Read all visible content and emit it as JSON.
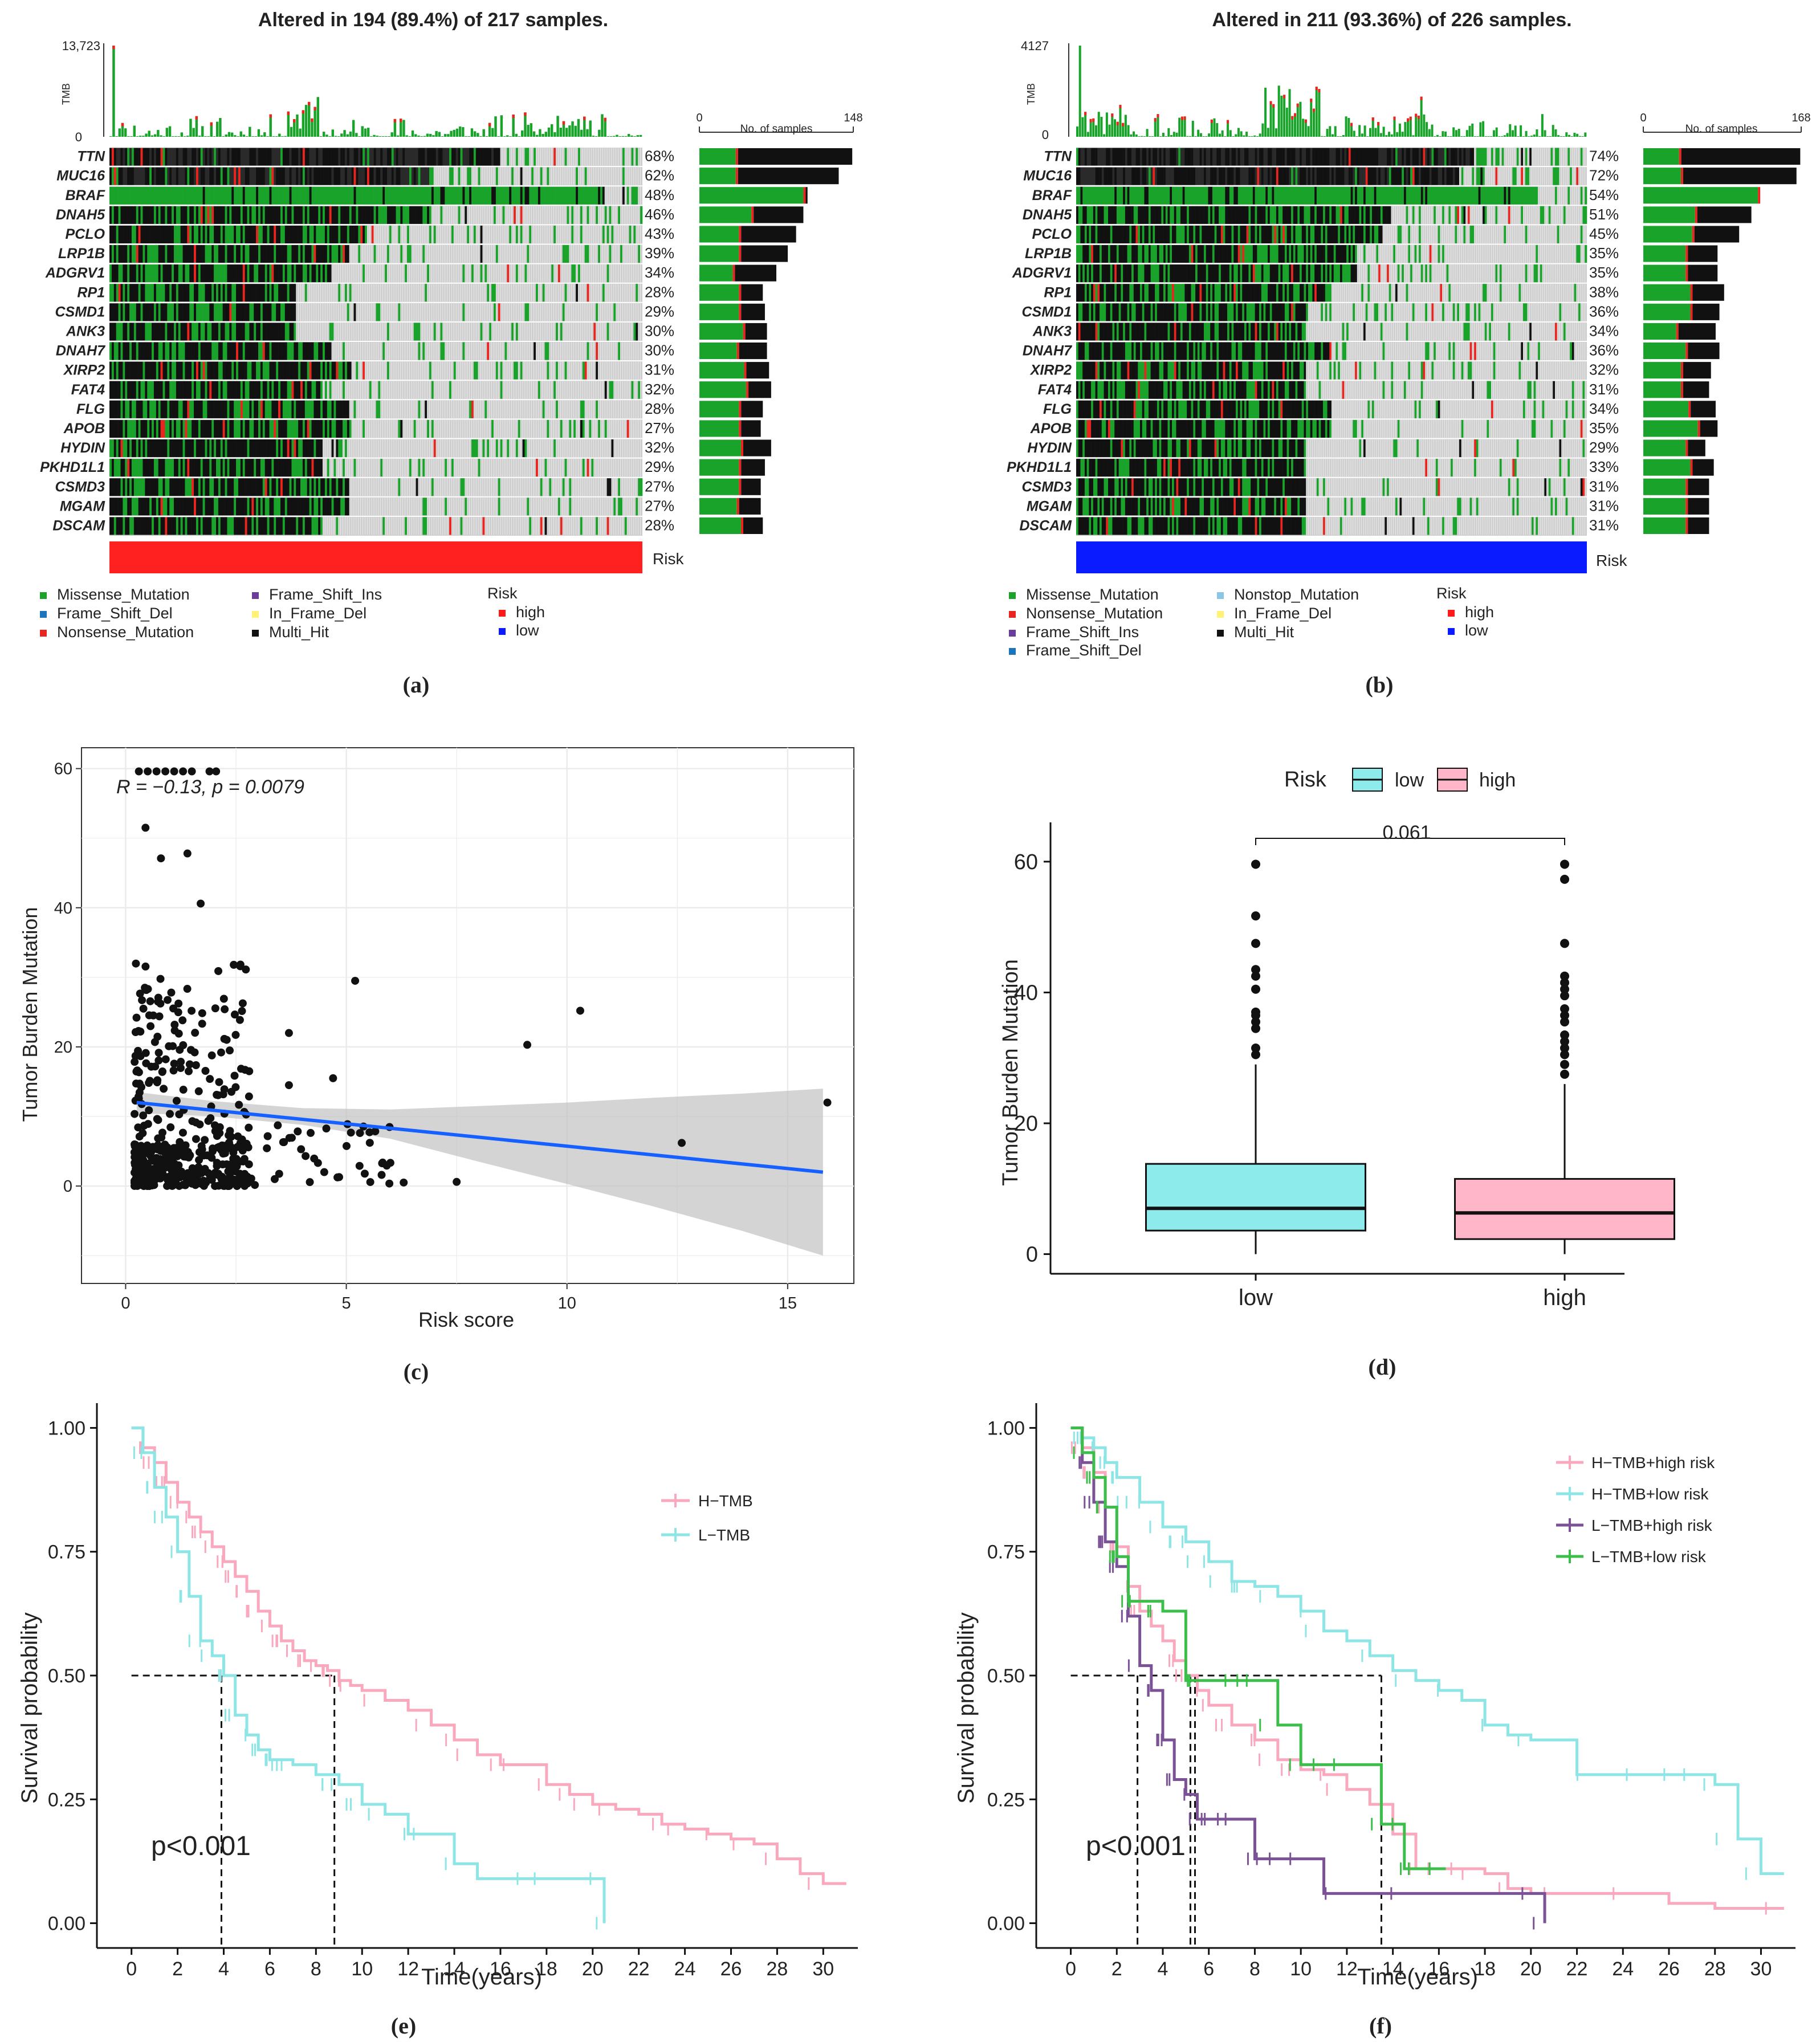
{
  "chart_data": [
    {
      "panel": "(a)",
      "type": "oncoplot",
      "title": "Altered in 194 (89.4%) of 217 samples.",
      "tmb_label": "TMB",
      "tmb_max": "13,723",
      "tmb_zero": "0",
      "bar_axis_label": "No. of samples",
      "bar_axis_max": 148,
      "risk_label": "Risk",
      "risk_group": "high",
      "genes": [
        "TTN",
        "MUC16",
        "BRAF",
        "DNAH5",
        "PCLO",
        "LRP1B",
        "ADGRV1",
        "RP1",
        "CSMD1",
        "ANK3",
        "DNAH7",
        "XIRP2",
        "FAT4",
        "FLG",
        "APOB",
        "HYDIN",
        "PKHD1L1",
        "CSMD3",
        "MGAM",
        "DSCAM"
      ],
      "percents": [
        "68%",
        "62%",
        "48%",
        "46%",
        "43%",
        "39%",
        "34%",
        "28%",
        "29%",
        "30%",
        "30%",
        "31%",
        "32%",
        "28%",
        "27%",
        "32%",
        "29%",
        "27%",
        "27%",
        "28%"
      ],
      "counts": [
        147,
        134,
        104,
        100,
        93,
        85,
        74,
        61,
        63,
        65,
        65,
        67,
        69,
        61,
        59,
        69,
        63,
        59,
        59,
        61
      ],
      "missense_counts": [
        35,
        35,
        100,
        50,
        38,
        38,
        32,
        38,
        38,
        42,
        36,
        43,
        45,
        38,
        38,
        40,
        38,
        38,
        36,
        40
      ],
      "legend_title": "Risk",
      "legend_mutations": [
        "Missense_Mutation",
        "Frame_Shift_Del",
        "Nonsense_Mutation",
        "Frame_Shift_Ins",
        "In_Frame_Del",
        "Multi_Hit"
      ],
      "legend_risk": [
        "high",
        "low"
      ],
      "label": "(a)"
    },
    {
      "panel": "(b)",
      "type": "oncoplot",
      "title": "Altered in 211 (93.36%) of 226 samples.",
      "tmb_label": "TMB",
      "tmb_max": "4127",
      "tmb_zero": "0",
      "bar_axis_label": "No. of samples",
      "bar_axis_max": 168,
      "risk_label": "Risk",
      "risk_group": "low",
      "genes": [
        "TTN",
        "MUC16",
        "BRAF",
        "DNAH5",
        "PCLO",
        "LRP1B",
        "ADGRV1",
        "RP1",
        "CSMD1",
        "ANK3",
        "DNAH7",
        "XIRP2",
        "FAT4",
        "FLG",
        "APOB",
        "HYDIN",
        "PKHD1L1",
        "CSMD3",
        "MGAM",
        "DSCAM"
      ],
      "percents": [
        "74%",
        "72%",
        "54%",
        "51%",
        "45%",
        "35%",
        "35%",
        "38%",
        "36%",
        "34%",
        "36%",
        "32%",
        "31%",
        "34%",
        "35%",
        "29%",
        "33%",
        "31%",
        "31%",
        "31%"
      ],
      "counts": [
        167,
        163,
        122,
        115,
        102,
        79,
        79,
        86,
        81,
        77,
        81,
        72,
        70,
        77,
        79,
        66,
        75,
        70,
        70,
        70
      ],
      "missense_counts": [
        38,
        40,
        122,
        55,
        52,
        45,
        45,
        50,
        50,
        35,
        45,
        40,
        40,
        48,
        58,
        45,
        50,
        45,
        45,
        45
      ],
      "legend_title": "Risk",
      "legend_mutations": [
        "Missense_Mutation",
        "Nonsense_Mutation",
        "Frame_Shift_Ins",
        "Frame_Shift_Del",
        "Nonstop_Mutation",
        "In_Frame_Del",
        "Multi_Hit"
      ],
      "legend_risk": [
        "high",
        "low"
      ],
      "label": "(b)"
    },
    {
      "panel": "(c)",
      "type": "scatter",
      "annotation": "R = −0.13, p = 0.0079",
      "xlabel": "Risk score",
      "ylabel": "Tumor Burden Mutation",
      "xlim": [
        -1,
        16.5
      ],
      "ylim": [
        -14,
        63
      ],
      "xticks": [
        0,
        5,
        10,
        15
      ],
      "yticks": [
        0,
        20,
        40,
        60
      ],
      "fit_line": {
        "x": [
          0.25,
          15.8
        ],
        "y": [
          12.0,
          2.0
        ]
      },
      "confidence_band": {
        "x": [
          0.25,
          2,
          4,
          6,
          8,
          10,
          12,
          14,
          15.8
        ],
        "lower": [
          10.5,
          10.0,
          8.8,
          6.8,
          3.5,
          0.3,
          -3.0,
          -6.5,
          -10.0
        ],
        "upper": [
          13.5,
          12.2,
          11.2,
          11.0,
          11.5,
          12.0,
          12.7,
          13.3,
          14.0
        ]
      },
      "points_outliers": [
        [
          9.1,
          20.3
        ],
        [
          10.3,
          25.2
        ],
        [
          12.6,
          6.2
        ],
        [
          15.9,
          12.0
        ],
        [
          5.2,
          29.5
        ],
        [
          3.7,
          22.0
        ],
        [
          4.7,
          15.5
        ],
        [
          3.7,
          14.5
        ],
        [
          2.8,
          16.5
        ],
        [
          6.3,
          0.5
        ],
        [
          7.5,
          0.6
        ],
        [
          5.8,
          1.6
        ],
        [
          5.3,
          2.9
        ],
        [
          4.5,
          2.0
        ],
        [
          2.45,
          31.8
        ],
        [
          2.1,
          30.9
        ],
        [
          1.4,
          47.8
        ],
        [
          0.45,
          51.5
        ],
        [
          1.7,
          40.6
        ],
        [
          0.8,
          47.1
        ]
      ],
      "label": "(c)"
    },
    {
      "panel": "(d)",
      "type": "boxplot",
      "legend_title": "Risk",
      "categories": [
        "low",
        "high"
      ],
      "ylabel": "Tumor Burden Mutation",
      "ylim": [
        -3,
        66
      ],
      "yticks": [
        0,
        20,
        40,
        60
      ],
      "pvalue": "0.061",
      "series": [
        {
          "name": "low",
          "min": 0,
          "q1": 3.6,
          "median": 7.0,
          "q3": 13.8,
          "whisker_max": 29,
          "outliers": [
            30.5,
            31.5,
            34.5,
            35.5,
            36.5,
            37.0,
            40.5,
            42.5,
            43.5,
            47.5,
            51.7,
            59.6
          ],
          "color": "#8EEBEB"
        },
        {
          "name": "high",
          "min": 0,
          "q1": 2.3,
          "median": 6.3,
          "q3": 11.5,
          "whisker_max": 26,
          "outliers": [
            27.5,
            29.0,
            30.5,
            31.5,
            32.5,
            33.5,
            35.5,
            36.5,
            37.5,
            39.5,
            40.5,
            41.5,
            42.5,
            47.5,
            57.3,
            59.6
          ],
          "color": "#FFB6C8"
        }
      ],
      "label": "(d)"
    },
    {
      "panel": "(e)",
      "type": "line",
      "subtype": "kaplan-meier",
      "xlabel": "Time(years)",
      "ylabel": "Survival probability",
      "xlim": [
        -1.5,
        31.5
      ],
      "ylim": [
        -0.05,
        1.05
      ],
      "xticks": [
        0,
        2,
        4,
        6,
        8,
        10,
        12,
        14,
        16,
        18,
        20,
        22,
        24,
        26,
        28,
        30
      ],
      "yticks": [
        "0.00",
        "0.25",
        "0.50",
        "0.75",
        "1.00"
      ],
      "pvalue": "p<0.001",
      "median_lines": [
        3.9,
        8.8
      ],
      "series": [
        {
          "name": "H−TMB",
          "color": "#F9A8BD",
          "x": [
            0,
            0.5,
            1,
            1.5,
            2,
            2.5,
            3,
            3.5,
            4,
            4.5,
            5,
            5.5,
            6,
            6.5,
            7,
            7.5,
            8,
            8.5,
            9,
            9.5,
            10,
            11,
            12,
            13,
            14,
            15,
            16,
            17,
            18,
            19,
            20,
            21,
            22,
            23,
            24,
            25,
            26,
            27,
            28,
            29,
            30,
            31
          ],
          "y": [
            1,
            0.96,
            0.93,
            0.89,
            0.85,
            0.82,
            0.79,
            0.76,
            0.73,
            0.7,
            0.67,
            0.63,
            0.6,
            0.57,
            0.55,
            0.53,
            0.52,
            0.51,
            0.49,
            0.48,
            0.47,
            0.45,
            0.43,
            0.4,
            0.37,
            0.34,
            0.32,
            0.32,
            0.28,
            0.26,
            0.24,
            0.23,
            0.22,
            0.2,
            0.19,
            0.18,
            0.17,
            0.16,
            0.13,
            0.1,
            0.08,
            0.08
          ]
        },
        {
          "name": "L−TMB",
          "color": "#8EE5E5",
          "x": [
            0,
            0.5,
            1,
            1.5,
            2,
            2.5,
            3,
            3.5,
            4,
            4.5,
            5,
            5.5,
            6,
            7,
            8,
            9,
            10,
            11,
            12,
            13,
            14,
            15,
            16,
            17,
            18,
            19,
            20,
            20.5
          ],
          "y": [
            1,
            0.95,
            0.88,
            0.82,
            0.75,
            0.66,
            0.57,
            0.54,
            0.5,
            0.42,
            0.38,
            0.35,
            0.33,
            0.32,
            0.3,
            0.28,
            0.24,
            0.22,
            0.18,
            0.18,
            0.12,
            0.09,
            0.09,
            0.09,
            0.09,
            0.09,
            0.09,
            0.0
          ]
        }
      ],
      "label": "(e)"
    },
    {
      "panel": "(f)",
      "type": "line",
      "subtype": "kaplan-meier",
      "xlabel": "Time(years)",
      "ylabel": "Survival probability",
      "xlim": [
        -1.5,
        31.5
      ],
      "ylim": [
        -0.05,
        1.05
      ],
      "xticks": [
        0,
        2,
        4,
        6,
        8,
        10,
        12,
        14,
        16,
        18,
        20,
        22,
        24,
        26,
        28,
        30
      ],
      "yticks": [
        "0.00",
        "0.25",
        "0.50",
        "0.75",
        "1.00"
      ],
      "pvalue": "p<0.001",
      "median_lines": [
        2.9,
        5.2,
        5.4,
        13.5
      ],
      "series": [
        {
          "name": "H−TMB+high risk",
          "color": "#F9A8BD",
          "x": [
            0,
            0.5,
            1,
            1.5,
            2,
            2.5,
            3,
            3.5,
            4,
            4.5,
            5,
            5.5,
            6,
            7,
            8,
            9,
            10,
            11,
            12,
            13,
            14,
            15,
            16,
            17,
            18,
            19,
            20,
            22,
            24,
            26,
            28,
            30,
            31
          ],
          "y": [
            1,
            0.96,
            0.91,
            0.84,
            0.76,
            0.68,
            0.63,
            0.6,
            0.57,
            0.53,
            0.5,
            0.47,
            0.44,
            0.4,
            0.37,
            0.33,
            0.31,
            0.3,
            0.27,
            0.24,
            0.18,
            0.11,
            0.11,
            0.11,
            0.1,
            0.07,
            0.06,
            0.06,
            0.06,
            0.04,
            0.03,
            0.03,
            0.03
          ]
        },
        {
          "name": "H−TMB+low risk",
          "color": "#8EE5E5",
          "x": [
            0,
            0.5,
            1,
            1.5,
            2,
            3,
            4,
            5,
            6,
            7,
            8,
            9,
            10,
            11,
            12,
            13,
            14,
            15,
            16,
            17,
            18,
            19,
            20,
            21,
            22,
            23,
            24,
            25,
            26,
            27,
            28,
            29,
            30,
            31
          ],
          "y": [
            1,
            0.98,
            0.96,
            0.93,
            0.9,
            0.85,
            0.8,
            0.77,
            0.73,
            0.69,
            0.68,
            0.66,
            0.63,
            0.59,
            0.57,
            0.54,
            0.51,
            0.49,
            0.47,
            0.45,
            0.4,
            0.38,
            0.37,
            0.37,
            0.3,
            0.3,
            0.3,
            0.3,
            0.3,
            0.3,
            0.28,
            0.17,
            0.1,
            0.1
          ]
        },
        {
          "name": "L−TMB+high risk",
          "color": "#7B5296",
          "x": [
            0,
            0.5,
            1,
            1.5,
            2,
            2.5,
            3,
            3.5,
            4,
            4.5,
            5,
            5.5,
            6,
            7,
            8,
            9,
            10,
            11,
            12,
            14,
            16,
            18,
            20,
            20.6
          ],
          "y": [
            1,
            0.93,
            0.85,
            0.77,
            0.72,
            0.62,
            0.52,
            0.47,
            0.37,
            0.29,
            0.26,
            0.21,
            0.21,
            0.21,
            0.13,
            0.13,
            0.13,
            0.06,
            0.06,
            0.06,
            0.06,
            0.06,
            0.06,
            0.0
          ]
        },
        {
          "name": "L−TMB+low risk",
          "color": "#3CBF4A",
          "x": [
            0,
            0.5,
            1,
            1.5,
            2,
            2.5,
            3,
            4,
            5,
            5.5,
            7,
            8,
            9,
            10,
            11,
            12,
            13,
            13.5,
            14,
            14.5,
            15,
            16.3
          ],
          "y": [
            1,
            0.95,
            0.9,
            0.84,
            0.74,
            0.65,
            0.65,
            0.63,
            0.49,
            0.49,
            0.49,
            0.49,
            0.4,
            0.32,
            0.32,
            0.32,
            0.32,
            0.2,
            0.2,
            0.11,
            0.11,
            0.11
          ]
        }
      ],
      "label": "(f)"
    }
  ]
}
